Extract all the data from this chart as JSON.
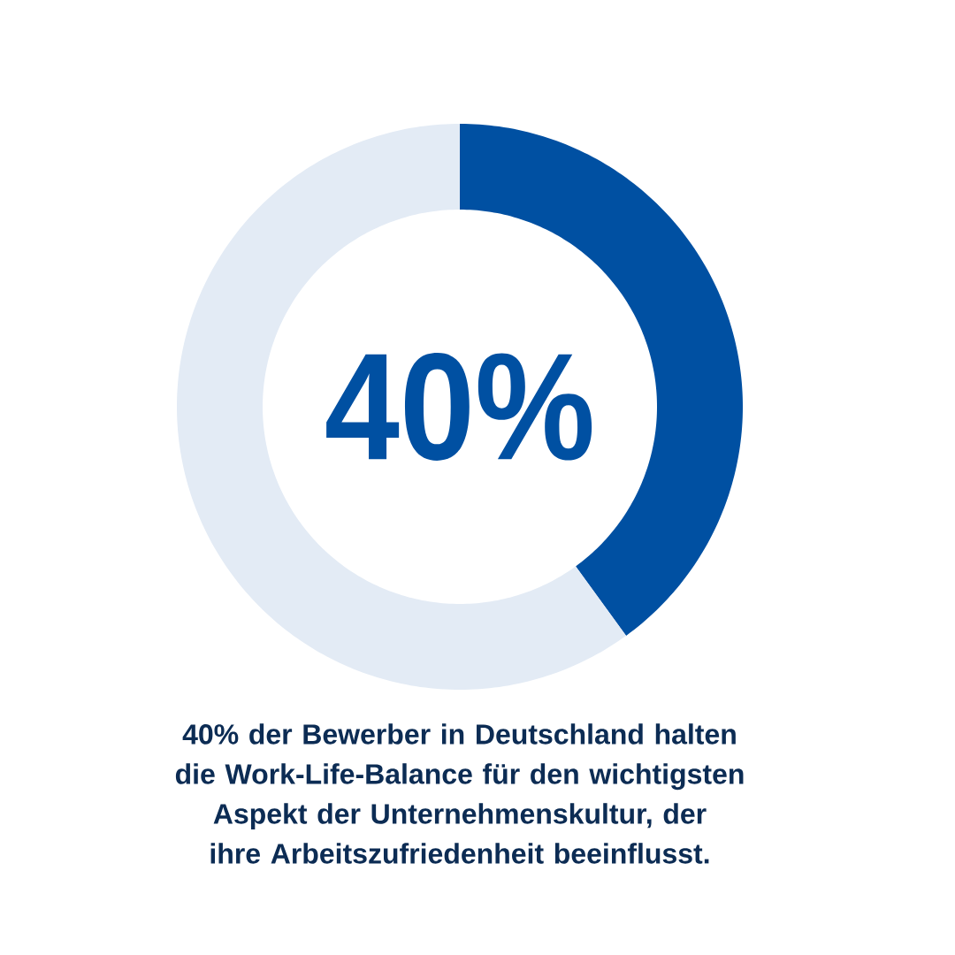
{
  "chart_data": {
    "type": "donut",
    "categories": [
      null,
      null
    ],
    "values": [
      40,
      60
    ],
    "colors": [
      "#0050a2",
      "#e3ebf5"
    ],
    "annotations": [
      "40%",
      "40% der Bewerber in Deutschland halten die Work-Life-Balance für den wichtigsten Aspekt der Unternehmenskultur, der ihre Arbeitszufriedenheit beeinflusst."
    ]
  }
}
